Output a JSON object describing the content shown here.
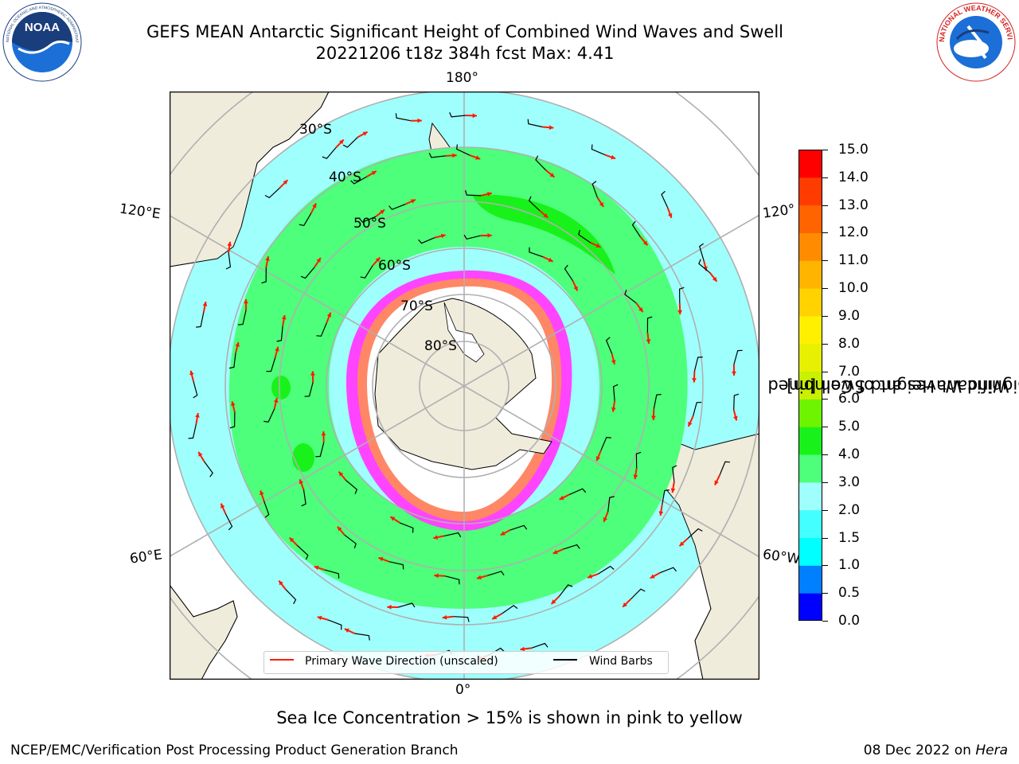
{
  "title": {
    "line1": "GEFS MEAN Antarctic Significant Height of Combined Wind Waves and Swell",
    "line2": "20221206 t18z 384h fcst   Max: 4.41"
  },
  "logos": {
    "left": {
      "name": "noaa-logo",
      "text": "NOAA",
      "ring_text": "NATIONAL OCEANIC AND ATMOSPHERIC ADMINISTRATION · U.S. DEPARTMENT OF COMMERCE"
    },
    "right": {
      "name": "nws-logo",
      "ring_text": "NATIONAL WEATHER SERVICE"
    }
  },
  "map": {
    "projection": "south polar stereographic",
    "longitude_labels": {
      "top": "180°",
      "bottom": "0°",
      "left_upper": "120°E",
      "left_lower": "60°E",
      "right_upper": "120°",
      "right_lower": "60°W"
    },
    "latitude_labels": [
      "30°S",
      "40°S",
      "50°S",
      "60°S",
      "70°S",
      "80°S"
    ],
    "colors": {
      "land": "#efecdc",
      "ocean_0_2": "#9ffffd",
      "ocean_2_3": "#4dff7a",
      "ocean_3_4": "#18f21a",
      "ice": "#ff44ff",
      "ice_core": "#ffffff",
      "grid": "#b0b0b0",
      "arrows": "#ff1a00",
      "barbs": "#000000"
    }
  },
  "legend": {
    "items": [
      {
        "label": "Primary Wave Direction (unscaled)",
        "color": "#ff1a00"
      },
      {
        "label": "Wind Barbs",
        "color": "#000000"
      }
    ]
  },
  "colorbar": {
    "title_line1": "Significant Height of Combined",
    "title_line2": "Wind Waves and Swell [m]",
    "ticks": [
      "0.0",
      "0.5",
      "1.0",
      "1.5",
      "2.0",
      "3.0",
      "4.0",
      "5.0",
      "6.0",
      "7.0",
      "8.0",
      "9.0",
      "10.0",
      "11.0",
      "12.0",
      "13.0",
      "14.0",
      "15.0"
    ],
    "colors": [
      "#0000ff",
      "#0080ff",
      "#00ffff",
      "#44ffff",
      "#9ffffd",
      "#4dff7a",
      "#18f21a",
      "#6ef400",
      "#c8f000",
      "#e6f000",
      "#fff000",
      "#ffd200",
      "#ffb400",
      "#ff8c00",
      "#ff6400",
      "#ff3c00",
      "#ff0000"
    ]
  },
  "caption": "Sea Ice Concentration > 15% is shown in pink to yellow",
  "footer": {
    "left": "NCEP/EMC/Verification Post Processing Product Generation Branch",
    "right_date": "08 Dec 2022 on ",
    "right_host": "Hera"
  }
}
